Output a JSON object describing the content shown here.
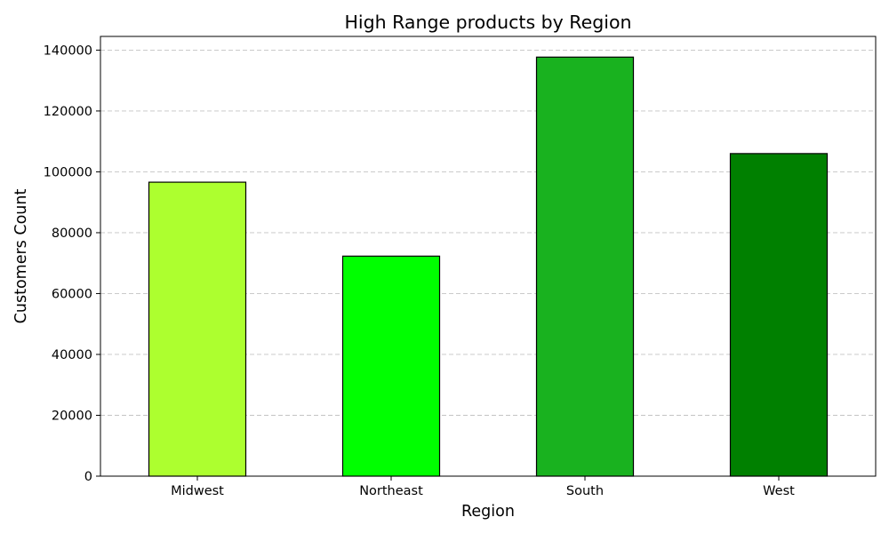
{
  "chart_data": {
    "type": "bar",
    "title": "High Range products by Region",
    "xlabel": "Region",
    "ylabel": "Customers Count",
    "categories": [
      "Midwest",
      "Northeast",
      "South",
      "West"
    ],
    "values": [
      96600,
      72300,
      137700,
      106000
    ],
    "ylim": [
      0,
      144500
    ],
    "yticks": [
      0,
      20000,
      40000,
      60000,
      80000,
      100000,
      120000,
      140000
    ],
    "colors": [
      "#adff2f",
      "#00ff00",
      "#19b21f",
      "#008000"
    ],
    "edge_color": "#000000",
    "grid": "y-dashed",
    "legend": "none"
  }
}
